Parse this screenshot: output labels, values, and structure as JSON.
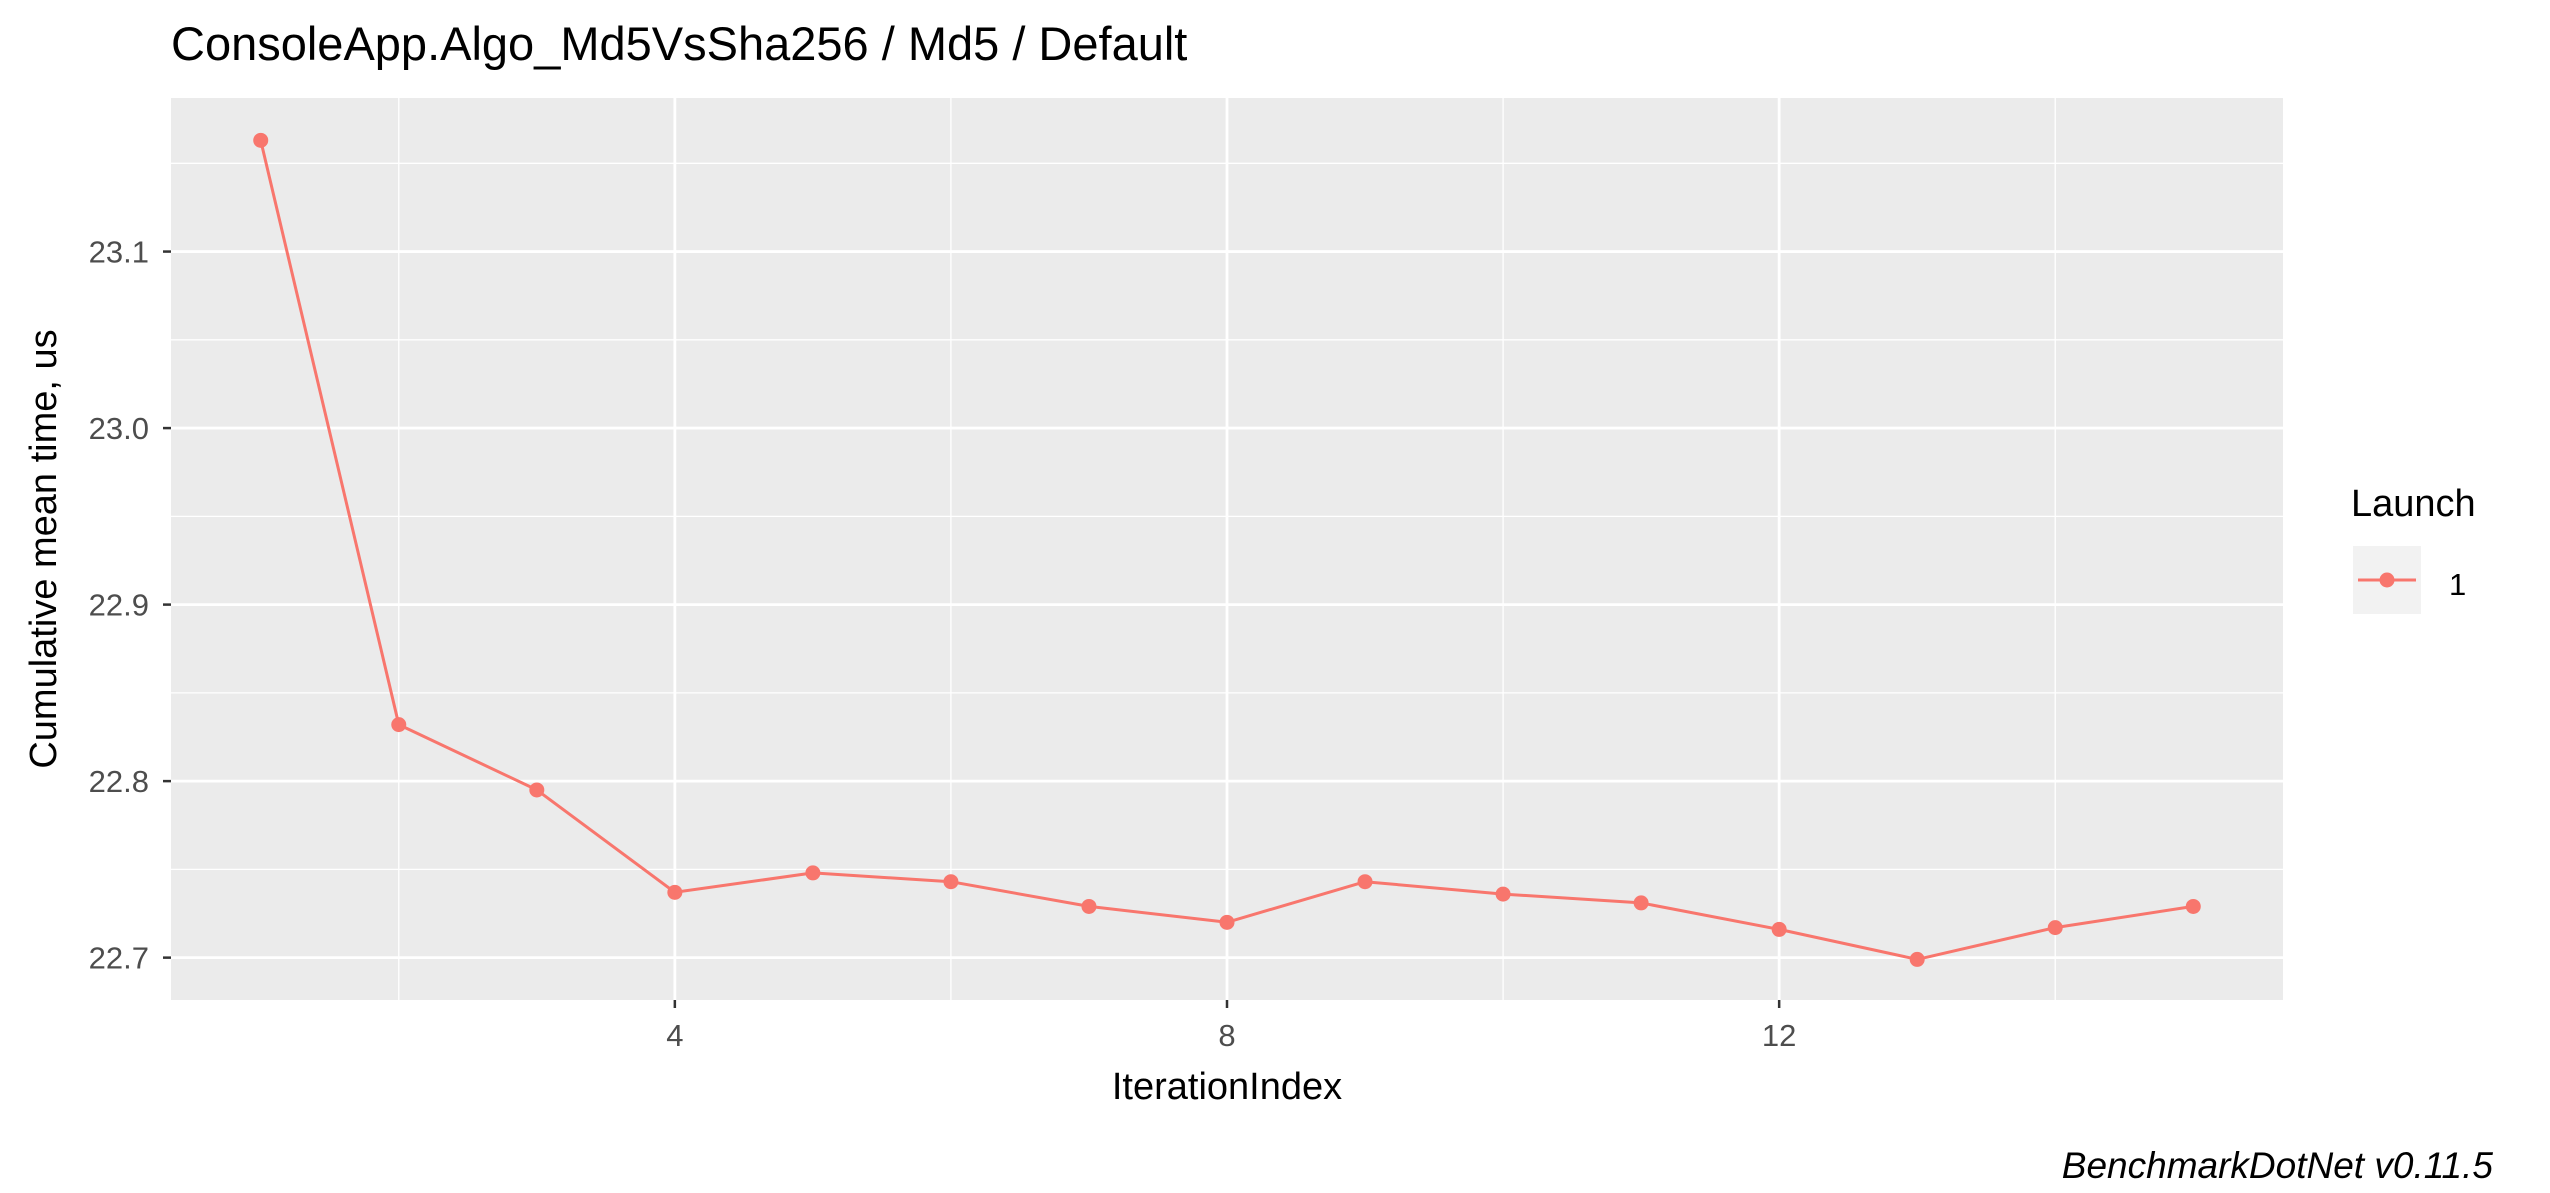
{
  "chart_data": {
    "type": "line",
    "title": "ConsoleApp.Algo_Md5VsSha256 / Md5 / Default",
    "xlabel": "IterationIndex",
    "ylabel": "Cumulative mean time, us",
    "caption": "BenchmarkDotNet v0.11.5",
    "xlim": [
      0.35,
      15.65
    ],
    "ylim": [
      22.676,
      23.187
    ],
    "x_ticks": [
      4,
      8,
      12
    ],
    "x_tick_labels": [
      "4",
      "8",
      "12"
    ],
    "x_minor_ticks": [
      2,
      6,
      10,
      14
    ],
    "y_ticks": [
      22.7,
      22.8,
      22.9,
      23.0,
      23.1
    ],
    "y_tick_labels": [
      "22.7",
      "22.8",
      "22.9",
      "23.0",
      "23.1"
    ],
    "y_minor_ticks": [
      22.75,
      22.85,
      22.95,
      23.05,
      23.15
    ],
    "grid": true,
    "legend": {
      "title": "Launch",
      "position": "right"
    },
    "series": [
      {
        "name": "1",
        "color": "#F8766D",
        "x": [
          1,
          2,
          3,
          4,
          5,
          6,
          7,
          8,
          9,
          10,
          11,
          12,
          13,
          14,
          15
        ],
        "y": [
          23.163,
          22.832,
          22.795,
          22.737,
          22.748,
          22.743,
          22.729,
          22.72,
          22.743,
          22.736,
          22.731,
          22.716,
          22.699,
          22.717,
          22.729
        ]
      }
    ],
    "colors": {
      "panel_background": "#EBEBEB",
      "grid": "#FFFFFF",
      "tick_text": "#4D4D4D",
      "legend_key_background": "#F2F2F2"
    }
  }
}
